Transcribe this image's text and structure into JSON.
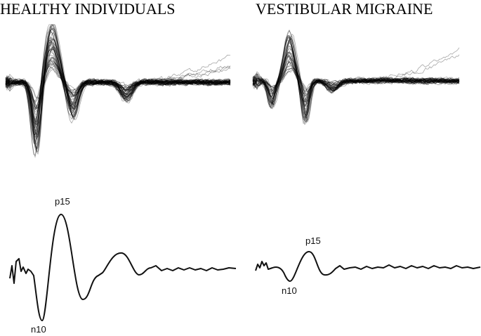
{
  "panels": [
    {
      "title": "HEALTHY INDIVIDUALS",
      "peak_labels": [
        "p15",
        "n10"
      ]
    },
    {
      "title": "VESTIBULAR MIGRAINE",
      "peak_labels": [
        "p15",
        "n10"
      ]
    }
  ]
}
